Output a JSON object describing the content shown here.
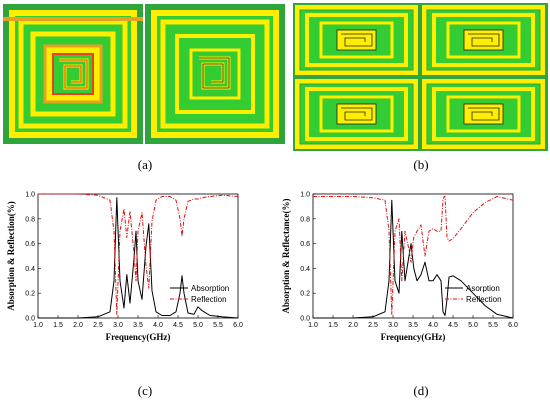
{
  "panels": {
    "a": {
      "caption": "(a)"
    },
    "b": {
      "caption": "(b)"
    },
    "c": {
      "caption": "(c)"
    },
    "d": {
      "caption": "(d)"
    }
  },
  "colors": {
    "outer_green": "#2fa53c",
    "fill_green": "#33cc33",
    "yellow": "#ffee00",
    "orange": "#e8a020",
    "red_line": "#e84020",
    "absorption": "#000000",
    "reflection": "#e01010"
  },
  "chart_data": [
    {
      "type": "line",
      "panel": "c",
      "xlabel": "Frequency(GHz)",
      "ylabel": "Absorption & Reflection(%)",
      "xlim": [
        1.0,
        6.0
      ],
      "ylim": [
        0.0,
        1.0
      ],
      "x_ticks": [
        "1.0",
        "1.5",
        "2.0",
        "2.5",
        "3.0",
        "3.5",
        "4.0",
        "4.5",
        "5.0",
        "5.5",
        "6.0"
      ],
      "y_ticks": [
        "0.0",
        "0.2",
        "0.4",
        "0.6",
        "0.8",
        "1.0"
      ],
      "legend_position": "lower-right",
      "series": [
        {
          "name": "Absorption",
          "style": "solid",
          "x": [
            1.0,
            2.0,
            2.5,
            2.8,
            2.9,
            2.97,
            3.05,
            3.15,
            3.22,
            3.3,
            3.4,
            3.45,
            3.5,
            3.6,
            3.7,
            3.77,
            3.85,
            3.95,
            4.1,
            4.3,
            4.45,
            4.55,
            4.6,
            4.65,
            4.75,
            4.9,
            5.0,
            5.1,
            5.3,
            5.6,
            6.0
          ],
          "values": [
            0.0,
            0.0,
            0.01,
            0.05,
            0.3,
            0.97,
            0.3,
            0.08,
            0.35,
            0.12,
            0.48,
            0.7,
            0.3,
            0.15,
            0.58,
            0.76,
            0.22,
            0.05,
            0.02,
            0.02,
            0.05,
            0.2,
            0.34,
            0.2,
            0.04,
            0.03,
            0.09,
            0.06,
            0.02,
            0.01,
            0.0
          ]
        },
        {
          "name": "Reflection",
          "style": "dash-dot",
          "x": [
            1.0,
            2.0,
            2.5,
            2.8,
            2.9,
            2.97,
            3.05,
            3.15,
            3.22,
            3.3,
            3.4,
            3.45,
            3.5,
            3.6,
            3.7,
            3.77,
            3.85,
            3.95,
            4.1,
            4.3,
            4.45,
            4.55,
            4.6,
            4.65,
            4.75,
            4.9,
            5.0,
            5.1,
            5.3,
            5.6,
            6.0
          ],
          "values": [
            1.0,
            1.0,
            0.99,
            0.95,
            0.7,
            0.03,
            0.7,
            0.88,
            0.65,
            0.86,
            0.52,
            0.3,
            0.7,
            0.85,
            0.42,
            0.24,
            0.78,
            0.95,
            0.98,
            0.98,
            0.95,
            0.8,
            0.66,
            0.8,
            0.94,
            0.96,
            0.96,
            0.97,
            0.98,
            0.99,
            0.98
          ]
        }
      ]
    },
    {
      "type": "line",
      "panel": "d",
      "xlabel": "Frequency(GHz)",
      "ylabel": "Absorption & Reflectance(%)",
      "xlim": [
        1.0,
        6.0
      ],
      "ylim": [
        0.0,
        1.0
      ],
      "x_ticks": [
        "1.0",
        "1.5",
        "2.0",
        "2.5",
        "3.0",
        "3.5",
        "4.0",
        "4.5",
        "5.0",
        "5.5",
        "6.0"
      ],
      "y_ticks": [
        "0.0",
        "0.2",
        "0.4",
        "0.6",
        "0.8",
        "1.0"
      ],
      "legend_position": "lower-right",
      "series": [
        {
          "name": "Asorption",
          "style": "solid",
          "x": [
            1.0,
            2.0,
            2.5,
            2.8,
            2.9,
            2.97,
            3.05,
            3.15,
            3.22,
            3.3,
            3.4,
            3.45,
            3.52,
            3.6,
            3.7,
            3.8,
            3.9,
            4.0,
            4.1,
            4.2,
            4.25,
            4.3,
            4.35,
            4.4,
            4.5,
            4.7,
            5.0,
            5.3,
            5.6,
            6.0
          ],
          "values": [
            0.0,
            0.0,
            0.01,
            0.05,
            0.3,
            0.95,
            0.3,
            0.2,
            0.7,
            0.3,
            0.5,
            0.6,
            0.4,
            0.3,
            0.35,
            0.45,
            0.3,
            0.3,
            0.35,
            0.3,
            0.05,
            0.02,
            0.15,
            0.33,
            0.34,
            0.3,
            0.2,
            0.1,
            0.03,
            0.0
          ]
        },
        {
          "name": "Reflection",
          "style": "dash-dot",
          "x": [
            1.0,
            2.0,
            2.5,
            2.8,
            2.9,
            2.97,
            3.05,
            3.15,
            3.22,
            3.3,
            3.4,
            3.45,
            3.52,
            3.6,
            3.7,
            3.8,
            3.9,
            4.0,
            4.1,
            4.2,
            4.25,
            4.28,
            4.3,
            4.35,
            4.4,
            4.5,
            4.7,
            5.0,
            5.3,
            5.6,
            6.0
          ],
          "values": [
            0.98,
            0.98,
            0.97,
            0.95,
            0.7,
            0.03,
            0.7,
            0.8,
            0.3,
            0.7,
            0.55,
            0.45,
            0.65,
            0.7,
            0.75,
            0.5,
            0.7,
            0.72,
            0.7,
            0.7,
            0.95,
            0.98,
            0.98,
            0.65,
            0.62,
            0.64,
            0.72,
            0.85,
            0.93,
            0.98,
            0.95
          ]
        }
      ]
    }
  ]
}
